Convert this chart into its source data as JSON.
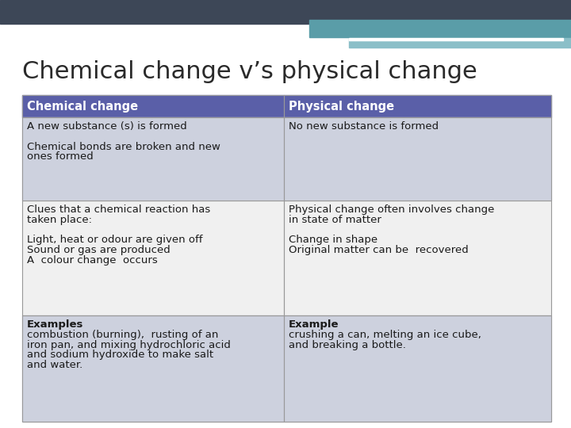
{
  "title": "Chemical change v’s physical change",
  "background_color": "#ffffff",
  "header_color": "#5a5fa8",
  "header_text_color": "#ffffff",
  "col1_header": "Chemical change",
  "col2_header": "Physical change",
  "rows": [
    {
      "left": "A new substance (s) is formed\n\nChemical bonds are broken and new\nones formed",
      "right": "No new substance is formed",
      "bg": "#cdd1de"
    },
    {
      "left": "Clues that a chemical reaction has\ntaken place:\n\nLight, heat or odour are given off\nSound or gas are produced\nA  colour change  occurs",
      "right": "Physical change often involves change\nin state of matter\n\nChange in shape\nOriginal matter can be  recovered",
      "bg": "#f0f0f0"
    },
    {
      "left": "BOLD:Examples\ncombustion (burning),  rusting of an\niron pan, and mixing hydrochloric acid\nand sodium hydroxide to make salt\nand water.",
      "right": "BOLD:Example\ncrushing a can, melting an ice cube,\nand breaking a bottle.",
      "bg": "#cdd1de"
    }
  ],
  "dark_bar_color": "#3d4757",
  "teal_bar_color": "#5a9da8",
  "teal_bar2_color": "#8bbfc8",
  "white_line_color": "#ffffff",
  "title_fontsize": 22,
  "header_fontsize": 10.5,
  "cell_fontsize": 9.5
}
